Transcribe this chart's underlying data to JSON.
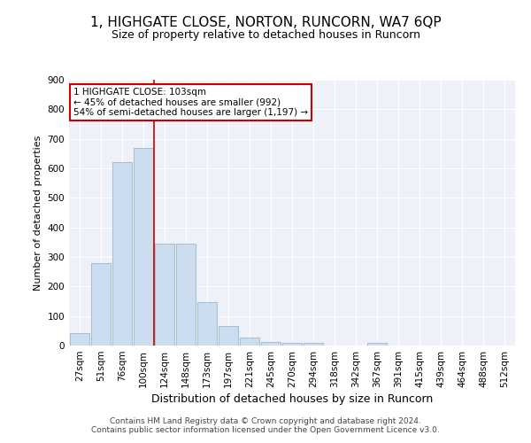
{
  "title": "1, HIGHGATE CLOSE, NORTON, RUNCORN, WA7 6QP",
  "subtitle": "Size of property relative to detached houses in Runcorn",
  "xlabel": "Distribution of detached houses by size in Runcorn",
  "ylabel": "Number of detached properties",
  "categories": [
    "27sqm",
    "51sqm",
    "76sqm",
    "100sqm",
    "124sqm",
    "148sqm",
    "173sqm",
    "197sqm",
    "221sqm",
    "245sqm",
    "270sqm",
    "294sqm",
    "318sqm",
    "342sqm",
    "367sqm",
    "391sqm",
    "415sqm",
    "439sqm",
    "464sqm",
    "488sqm",
    "512sqm"
  ],
  "values": [
    42,
    280,
    620,
    668,
    345,
    345,
    148,
    65,
    28,
    12,
    10,
    10,
    0,
    0,
    8,
    0,
    0,
    0,
    0,
    0,
    0
  ],
  "bar_color": "#ccddf0",
  "bar_edge_color": "#a0bcd8",
  "vline_x": 3.5,
  "vline_color": "#cc0000",
  "annotation_text": "1 HIGHGATE CLOSE: 103sqm\n← 45% of detached houses are smaller (992)\n54% of semi-detached houses are larger (1,197) →",
  "annotation_box_color": "#ffffff",
  "annotation_box_edge": "#cc0000",
  "ylim": [
    0,
    900
  ],
  "yticks": [
    0,
    100,
    200,
    300,
    400,
    500,
    600,
    700,
    800,
    900
  ],
  "title_fontsize": 11,
  "subtitle_fontsize": 9,
  "xlabel_fontsize": 9,
  "ylabel_fontsize": 8,
  "tick_fontsize": 7.5,
  "annot_fontsize": 7.5,
  "footer_text": "Contains HM Land Registry data © Crown copyright and database right 2024.\nContains public sector information licensed under the Open Government Licence v3.0.",
  "bg_color": "#eef2f8",
  "fig_bg_color": "#ffffff"
}
